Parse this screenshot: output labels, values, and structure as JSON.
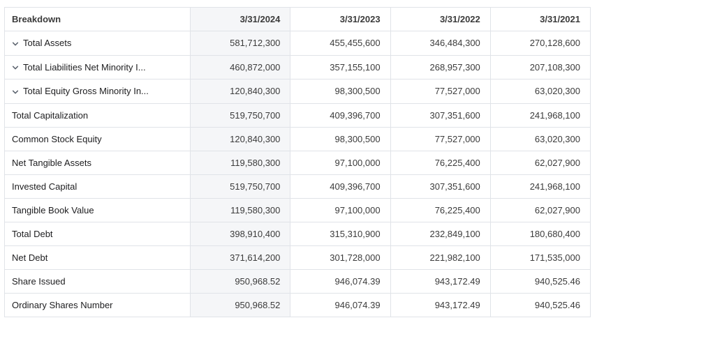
{
  "table": {
    "header_label": "Breakdown",
    "columns": [
      "3/31/2024",
      "3/31/2023",
      "3/31/2022",
      "3/31/2021"
    ],
    "rows": [
      {
        "label": "Total Assets",
        "expandable": true,
        "values": [
          "581,712,300",
          "455,455,600",
          "346,484,300",
          "270,128,600"
        ]
      },
      {
        "label": "Total Liabilities Net Minority I...",
        "expandable": true,
        "values": [
          "460,872,000",
          "357,155,100",
          "268,957,300",
          "207,108,300"
        ]
      },
      {
        "label": "Total Equity Gross Minority In...",
        "expandable": true,
        "values": [
          "120,840,300",
          "98,300,500",
          "77,527,000",
          "63,020,300"
        ]
      },
      {
        "label": "Total Capitalization",
        "expandable": false,
        "values": [
          "519,750,700",
          "409,396,700",
          "307,351,600",
          "241,968,100"
        ]
      },
      {
        "label": "Common Stock Equity",
        "expandable": false,
        "values": [
          "120,840,300",
          "98,300,500",
          "77,527,000",
          "63,020,300"
        ]
      },
      {
        "label": "Net Tangible Assets",
        "expandable": false,
        "values": [
          "119,580,300",
          "97,100,000",
          "76,225,400",
          "62,027,900"
        ]
      },
      {
        "label": "Invested Capital",
        "expandable": false,
        "values": [
          "519,750,700",
          "409,396,700",
          "307,351,600",
          "241,968,100"
        ]
      },
      {
        "label": "Tangible Book Value",
        "expandable": false,
        "values": [
          "119,580,300",
          "97,100,000",
          "76,225,400",
          "62,027,900"
        ]
      },
      {
        "label": "Total Debt",
        "expandable": false,
        "values": [
          "398,910,400",
          "315,310,900",
          "232,849,100",
          "180,680,400"
        ]
      },
      {
        "label": "Net Debt",
        "expandable": false,
        "values": [
          "371,614,200",
          "301,728,000",
          "221,982,100",
          "171,535,000"
        ]
      },
      {
        "label": "Share Issued",
        "expandable": false,
        "values": [
          "950,968.52",
          "946,074.39",
          "943,172.49",
          "940,525.46"
        ]
      },
      {
        "label": "Ordinary Shares Number",
        "expandable": false,
        "values": [
          "950,968.52",
          "946,074.39",
          "943,172.49",
          "940,525.46"
        ]
      }
    ],
    "highlight_column_index": 0,
    "colors": {
      "border": "#e0e3e8",
      "highlight_bg": "#f5f6f8",
      "chevron": "#5b636e",
      "text": "#1d1d1f"
    }
  }
}
